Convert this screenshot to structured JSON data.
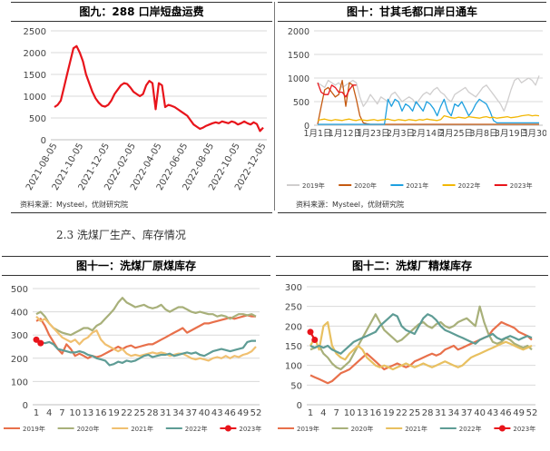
{
  "section_heading": "2.3 洗煤厂生产、库存情况",
  "chart_data": [
    {
      "id": "fig9",
      "type": "line",
      "title": "图九：288 口岸短盘运费",
      "source": "资料来源：Mysteel，优财研究院",
      "ylim": [
        0,
        2500
      ],
      "yticks": [
        "0",
        "500",
        "1000",
        "1500",
        "2000",
        "2500"
      ],
      "xticks": [
        "2021-08-05",
        "2021-10-05",
        "2021-12-05",
        "2022-02-05",
        "2022-04-05",
        "2022-06-05",
        "2022-08-05",
        "2022-10-05",
        "2022-12-05"
      ],
      "colors": {
        "line": "#e8141b",
        "grid": "#d9d9d9",
        "axis": "#bfbfbf"
      },
      "series": [
        {
          "name": "短盘运费",
          "values": [
            750,
            800,
            900,
            1200,
            1500,
            1800,
            2100,
            2150,
            2000,
            1800,
            1500,
            1300,
            1100,
            950,
            850,
            780,
            760,
            800,
            900,
            1050,
            1150,
            1250,
            1300,
            1280,
            1200,
            1100,
            1050,
            1000,
            1050,
            1250,
            1350,
            1300,
            700,
            1300,
            1250,
            750,
            800,
            780,
            750,
            700,
            650,
            600,
            550,
            450,
            350,
            300,
            250,
            280,
            320,
            350,
            380,
            400,
            380,
            420,
            400,
            380,
            420,
            400,
            350,
            380,
            420,
            380,
            350,
            400,
            360,
            200,
            280
          ]
        }
      ]
    },
    {
      "id": "fig10",
      "type": "line",
      "title": "图十：甘其毛都口岸日通车",
      "source": "资料来源：Mysteel，优财研究院",
      "ylim": [
        0,
        2000
      ],
      "yticks": [
        "0",
        "500",
        "1000",
        "1500",
        "2000"
      ],
      "xticks": [
        "1月1日",
        "1月12日",
        "1月23日",
        "2月3日",
        "2月14日",
        "2月25日",
        "3月8日",
        "3月19日",
        "3月30日"
      ],
      "legend": [
        "2019年",
        "2020年",
        "2021年",
        "2022年",
        "2023年"
      ],
      "colors": {
        "grid": "#d9d9d9",
        "axis": "#bfbfbf"
      },
      "series": [
        {
          "name": "2019年",
          "color": "#d0cece",
          "values": [
            900,
            850,
            800,
            950,
            900,
            850,
            900,
            800,
            850,
            900,
            950,
            900,
            600,
            400,
            500,
            650,
            550,
            450,
            600,
            550,
            500,
            650,
            700,
            600,
            500,
            550,
            600,
            550,
            450,
            550,
            650,
            700,
            650,
            750,
            800,
            700,
            650,
            550,
            500,
            650,
            700,
            750,
            800,
            700,
            650,
            600,
            700,
            800,
            850,
            750,
            650,
            550,
            450,
            300,
            500,
            750,
            950,
            1000,
            900,
            950,
            1000,
            950,
            850,
            1050
          ]
        },
        {
          "name": "2020年",
          "color": "#c55a11",
          "values": [
            20,
            400,
            750,
            800,
            700,
            600,
            650,
            950,
            400,
            900,
            850,
            550,
            200,
            50,
            30,
            20,
            20,
            20,
            20,
            20,
            20,
            20,
            20,
            20,
            20,
            20,
            20,
            20,
            20,
            20,
            20,
            20,
            20,
            20,
            20,
            20,
            20,
            20,
            20,
            20,
            20,
            20,
            20,
            20,
            20,
            20,
            20,
            20,
            20,
            20,
            20,
            20,
            20,
            20,
            20,
            20,
            20,
            20,
            20,
            20,
            20,
            20,
            20,
            20
          ]
        },
        {
          "name": "2021年",
          "color": "#1ea0e0",
          "values": [
            20,
            20,
            20,
            20,
            20,
            20,
            20,
            20,
            20,
            20,
            20,
            20,
            20,
            20,
            20,
            20,
            20,
            20,
            20,
            20,
            550,
            400,
            550,
            500,
            300,
            450,
            400,
            300,
            500,
            400,
            300,
            500,
            450,
            350,
            200,
            400,
            550,
            300,
            200,
            450,
            400,
            500,
            350,
            200,
            300,
            450,
            550,
            500,
            450,
            300,
            100,
            50,
            50,
            50,
            50,
            50,
            50,
            50,
            50,
            50,
            50,
            50,
            50,
            50
          ]
        },
        {
          "name": "2022年",
          "color": "#f2b705",
          "values": [
            100,
            120,
            130,
            110,
            100,
            120,
            110,
            100,
            120,
            130,
            110,
            100,
            120,
            110,
            100,
            110,
            120,
            100,
            110,
            120,
            130,
            110,
            100,
            120,
            110,
            100,
            120,
            110,
            100,
            120,
            110,
            130,
            120,
            110,
            100,
            120,
            200,
            180,
            160,
            150,
            170,
            160,
            150,
            180,
            170,
            160,
            150,
            170,
            180,
            160,
            170,
            150,
            160,
            170,
            180,
            160,
            170,
            180,
            200,
            210,
            220,
            200,
            210,
            200
          ]
        },
        {
          "name": "2023年",
          "color": "#e8141b",
          "values": [
            900,
            700,
            650,
            650,
            850,
            800,
            700,
            700,
            600,
            750,
            850,
            850
          ]
        }
      ]
    },
    {
      "id": "fig11",
      "type": "line",
      "title": "图十一：洗煤厂原煤库存",
      "ylim": [
        0,
        500
      ],
      "yticks": [
        "0",
        "100",
        "200",
        "300",
        "400",
        "500"
      ],
      "xticks": [
        "1",
        "4",
        "7",
        "10",
        "13",
        "16",
        "19",
        "22",
        "25",
        "28",
        "31",
        "34",
        "37",
        "40",
        "43",
        "46",
        "49",
        "52"
      ],
      "legend": [
        "2019年",
        "2020年",
        "2021年",
        "2022年",
        "2023年"
      ],
      "colors": {
        "grid": "#d9d9d9",
        "axis": "#bfbfbf"
      },
      "series": [
        {
          "name": "2019年",
          "color": "#e8704b",
          "values": [
            360,
            370,
            340,
            300,
            270,
            240,
            220,
            260,
            240,
            210,
            220,
            210,
            200,
            210,
            205,
            210,
            220,
            230,
            240,
            250,
            240,
            250,
            255,
            245,
            250,
            255,
            260,
            260,
            270,
            280,
            290,
            300,
            310,
            320,
            330,
            310,
            320,
            330,
            340,
            350,
            350,
            355,
            360,
            365,
            370,
            375,
            370,
            375,
            380,
            385,
            380,
            380
          ]
        },
        {
          "name": "2020年",
          "color": "#a8b07a",
          "values": [
            390,
            400,
            380,
            350,
            330,
            320,
            310,
            305,
            300,
            310,
            320,
            330,
            330,
            320,
            340,
            350,
            370,
            390,
            410,
            440,
            460,
            440,
            430,
            420,
            425,
            430,
            420,
            415,
            420,
            430,
            410,
            400,
            410,
            420,
            420,
            410,
            400,
            395,
            400,
            395,
            390,
            390,
            380,
            385,
            380,
            370,
            380,
            390,
            390,
            385,
            390,
            380
          ]
        },
        {
          "name": "2021年",
          "color": "#f0c070",
          "values": [
            380,
            360,
            370,
            350,
            330,
            310,
            290,
            280,
            270,
            280,
            260,
            280,
            290,
            310,
            320,
            280,
            260,
            250,
            240,
            230,
            240,
            220,
            210,
            215,
            210,
            215,
            220,
            225,
            220,
            225,
            220,
            210,
            215,
            220,
            220,
            210,
            200,
            195,
            200,
            195,
            190,
            200,
            205,
            200,
            210,
            200,
            210,
            205,
            215,
            220,
            230,
            250
          ]
        },
        {
          "name": "2022年",
          "color": "#5e9c95",
          "values": [
            275,
            270,
            265,
            270,
            260,
            240,
            235,
            230,
            225,
            225,
            230,
            225,
            215,
            210,
            200,
            195,
            190,
            170,
            175,
            185,
            180,
            190,
            185,
            190,
            200,
            210,
            215,
            205,
            210,
            215,
            215,
            220,
            210,
            215,
            220,
            225,
            220,
            225,
            215,
            210,
            220,
            230,
            235,
            240,
            235,
            230,
            235,
            240,
            245,
            270,
            275,
            275
          ]
        },
        {
          "name": "2023年",
          "color": "#e8141b",
          "values": [
            280,
            265
          ]
        }
      ]
    },
    {
      "id": "fig12",
      "type": "line",
      "title": "图十二：洗煤厂精煤库存",
      "ylim": [
        0,
        300
      ],
      "yticks": [
        "0",
        "50",
        "100",
        "150",
        "200",
        "250",
        "300"
      ],
      "xticks": [
        "1",
        "4",
        "7",
        "10",
        "13",
        "16",
        "19",
        "22",
        "25",
        "28",
        "31",
        "34",
        "37",
        "40",
        "43",
        "46",
        "49",
        "52"
      ],
      "legend": [
        "2019年",
        "2020年",
        "2021年",
        "2022年",
        "2023年"
      ],
      "colors": {
        "grid": "#d9d9d9",
        "axis": "#bfbfbf"
      },
      "series": [
        {
          "name": "2019年",
          "color": "#e8704b",
          "values": [
            75,
            70,
            65,
            60,
            55,
            60,
            70,
            80,
            85,
            90,
            100,
            110,
            120,
            130,
            120,
            110,
            100,
            90,
            95,
            100,
            105,
            100,
            95,
            100,
            110,
            115,
            120,
            125,
            130,
            125,
            130,
            140,
            145,
            150,
            140,
            145,
            150,
            155,
            160,
            165,
            170,
            175,
            190,
            200,
            210,
            205,
            200,
            195,
            185,
            180,
            175,
            165
          ]
        },
        {
          "name": "2020年",
          "color": "#a8b07a",
          "values": [
            140,
            145,
            150,
            130,
            120,
            105,
            95,
            90,
            100,
            110,
            130,
            150,
            170,
            190,
            210,
            230,
            210,
            190,
            180,
            170,
            160,
            165,
            175,
            185,
            195,
            205,
            210,
            200,
            195,
            205,
            210,
            200,
            195,
            200,
            210,
            215,
            220,
            210,
            200,
            250,
            210,
            180,
            160,
            155,
            160,
            170,
            165,
            155,
            150,
            145,
            150,
            140
          ]
        },
        {
          "name": "2021年",
          "color": "#e8c060",
          "values": [
            150,
            170,
            140,
            200,
            210,
            150,
            130,
            120,
            115,
            130,
            140,
            150,
            140,
            120,
            110,
            100,
            95,
            100,
            95,
            90,
            95,
            100,
            105,
            100,
            95,
            100,
            105,
            100,
            95,
            100,
            105,
            110,
            105,
            100,
            95,
            100,
            110,
            120,
            125,
            130,
            135,
            140,
            145,
            150,
            155,
            160,
            155,
            150,
            145,
            140,
            145,
            150
          ]
        },
        {
          "name": "2022年",
          "color": "#5e9c95",
          "values": [
            150,
            145,
            150,
            145,
            150,
            140,
            135,
            130,
            140,
            150,
            160,
            165,
            170,
            175,
            180,
            185,
            200,
            210,
            220,
            230,
            225,
            200,
            190,
            185,
            180,
            200,
            220,
            230,
            225,
            215,
            200,
            190,
            185,
            180,
            175,
            170,
            165,
            160,
            155,
            165,
            170,
            175,
            180,
            170,
            165,
            170,
            175,
            170,
            165,
            170,
            175,
            170
          ]
        },
        {
          "name": "2023年",
          "color": "#e8141b",
          "values": [
            185,
            165
          ]
        }
      ]
    }
  ]
}
